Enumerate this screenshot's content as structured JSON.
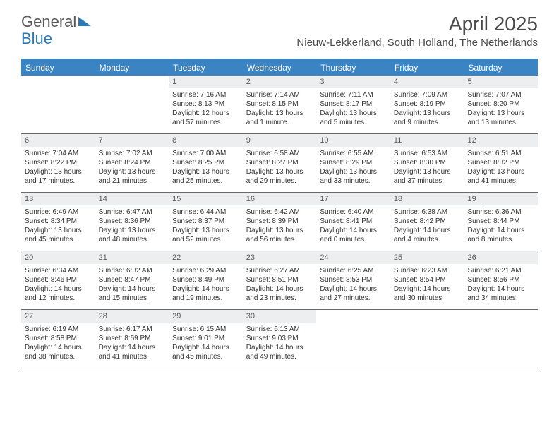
{
  "logo": {
    "part1": "General",
    "part2": "Blue"
  },
  "title": "April 2025",
  "location": "Nieuw-Lekkerland, South Holland, The Netherlands",
  "day_names": [
    "Sunday",
    "Monday",
    "Tuesday",
    "Wednesday",
    "Thursday",
    "Friday",
    "Saturday"
  ],
  "colors": {
    "header_bg": "#3b84c4",
    "header_text": "#ffffff",
    "daynum_bg": "#eceef0",
    "text": "#333333",
    "title_text": "#4a4a4a",
    "border": "#6a6a6a"
  },
  "weeks": [
    [
      {
        "n": "",
        "sr": "",
        "ss": "",
        "dl": ""
      },
      {
        "n": "",
        "sr": "",
        "ss": "",
        "dl": ""
      },
      {
        "n": "1",
        "sr": "Sunrise: 7:16 AM",
        "ss": "Sunset: 8:13 PM",
        "dl": "Daylight: 12 hours and 57 minutes."
      },
      {
        "n": "2",
        "sr": "Sunrise: 7:14 AM",
        "ss": "Sunset: 8:15 PM",
        "dl": "Daylight: 13 hours and 1 minute."
      },
      {
        "n": "3",
        "sr": "Sunrise: 7:11 AM",
        "ss": "Sunset: 8:17 PM",
        "dl": "Daylight: 13 hours and 5 minutes."
      },
      {
        "n": "4",
        "sr": "Sunrise: 7:09 AM",
        "ss": "Sunset: 8:19 PM",
        "dl": "Daylight: 13 hours and 9 minutes."
      },
      {
        "n": "5",
        "sr": "Sunrise: 7:07 AM",
        "ss": "Sunset: 8:20 PM",
        "dl": "Daylight: 13 hours and 13 minutes."
      }
    ],
    [
      {
        "n": "6",
        "sr": "Sunrise: 7:04 AM",
        "ss": "Sunset: 8:22 PM",
        "dl": "Daylight: 13 hours and 17 minutes."
      },
      {
        "n": "7",
        "sr": "Sunrise: 7:02 AM",
        "ss": "Sunset: 8:24 PM",
        "dl": "Daylight: 13 hours and 21 minutes."
      },
      {
        "n": "8",
        "sr": "Sunrise: 7:00 AM",
        "ss": "Sunset: 8:25 PM",
        "dl": "Daylight: 13 hours and 25 minutes."
      },
      {
        "n": "9",
        "sr": "Sunrise: 6:58 AM",
        "ss": "Sunset: 8:27 PM",
        "dl": "Daylight: 13 hours and 29 minutes."
      },
      {
        "n": "10",
        "sr": "Sunrise: 6:55 AM",
        "ss": "Sunset: 8:29 PM",
        "dl": "Daylight: 13 hours and 33 minutes."
      },
      {
        "n": "11",
        "sr": "Sunrise: 6:53 AM",
        "ss": "Sunset: 8:30 PM",
        "dl": "Daylight: 13 hours and 37 minutes."
      },
      {
        "n": "12",
        "sr": "Sunrise: 6:51 AM",
        "ss": "Sunset: 8:32 PM",
        "dl": "Daylight: 13 hours and 41 minutes."
      }
    ],
    [
      {
        "n": "13",
        "sr": "Sunrise: 6:49 AM",
        "ss": "Sunset: 8:34 PM",
        "dl": "Daylight: 13 hours and 45 minutes."
      },
      {
        "n": "14",
        "sr": "Sunrise: 6:47 AM",
        "ss": "Sunset: 8:36 PM",
        "dl": "Daylight: 13 hours and 48 minutes."
      },
      {
        "n": "15",
        "sr": "Sunrise: 6:44 AM",
        "ss": "Sunset: 8:37 PM",
        "dl": "Daylight: 13 hours and 52 minutes."
      },
      {
        "n": "16",
        "sr": "Sunrise: 6:42 AM",
        "ss": "Sunset: 8:39 PM",
        "dl": "Daylight: 13 hours and 56 minutes."
      },
      {
        "n": "17",
        "sr": "Sunrise: 6:40 AM",
        "ss": "Sunset: 8:41 PM",
        "dl": "Daylight: 14 hours and 0 minutes."
      },
      {
        "n": "18",
        "sr": "Sunrise: 6:38 AM",
        "ss": "Sunset: 8:42 PM",
        "dl": "Daylight: 14 hours and 4 minutes."
      },
      {
        "n": "19",
        "sr": "Sunrise: 6:36 AM",
        "ss": "Sunset: 8:44 PM",
        "dl": "Daylight: 14 hours and 8 minutes."
      }
    ],
    [
      {
        "n": "20",
        "sr": "Sunrise: 6:34 AM",
        "ss": "Sunset: 8:46 PM",
        "dl": "Daylight: 14 hours and 12 minutes."
      },
      {
        "n": "21",
        "sr": "Sunrise: 6:32 AM",
        "ss": "Sunset: 8:47 PM",
        "dl": "Daylight: 14 hours and 15 minutes."
      },
      {
        "n": "22",
        "sr": "Sunrise: 6:29 AM",
        "ss": "Sunset: 8:49 PM",
        "dl": "Daylight: 14 hours and 19 minutes."
      },
      {
        "n": "23",
        "sr": "Sunrise: 6:27 AM",
        "ss": "Sunset: 8:51 PM",
        "dl": "Daylight: 14 hours and 23 minutes."
      },
      {
        "n": "24",
        "sr": "Sunrise: 6:25 AM",
        "ss": "Sunset: 8:53 PM",
        "dl": "Daylight: 14 hours and 27 minutes."
      },
      {
        "n": "25",
        "sr": "Sunrise: 6:23 AM",
        "ss": "Sunset: 8:54 PM",
        "dl": "Daylight: 14 hours and 30 minutes."
      },
      {
        "n": "26",
        "sr": "Sunrise: 6:21 AM",
        "ss": "Sunset: 8:56 PM",
        "dl": "Daylight: 14 hours and 34 minutes."
      }
    ],
    [
      {
        "n": "27",
        "sr": "Sunrise: 6:19 AM",
        "ss": "Sunset: 8:58 PM",
        "dl": "Daylight: 14 hours and 38 minutes."
      },
      {
        "n": "28",
        "sr": "Sunrise: 6:17 AM",
        "ss": "Sunset: 8:59 PM",
        "dl": "Daylight: 14 hours and 41 minutes."
      },
      {
        "n": "29",
        "sr": "Sunrise: 6:15 AM",
        "ss": "Sunset: 9:01 PM",
        "dl": "Daylight: 14 hours and 45 minutes."
      },
      {
        "n": "30",
        "sr": "Sunrise: 6:13 AM",
        "ss": "Sunset: 9:03 PM",
        "dl": "Daylight: 14 hours and 49 minutes."
      },
      {
        "n": "",
        "sr": "",
        "ss": "",
        "dl": ""
      },
      {
        "n": "",
        "sr": "",
        "ss": "",
        "dl": ""
      },
      {
        "n": "",
        "sr": "",
        "ss": "",
        "dl": ""
      }
    ]
  ]
}
